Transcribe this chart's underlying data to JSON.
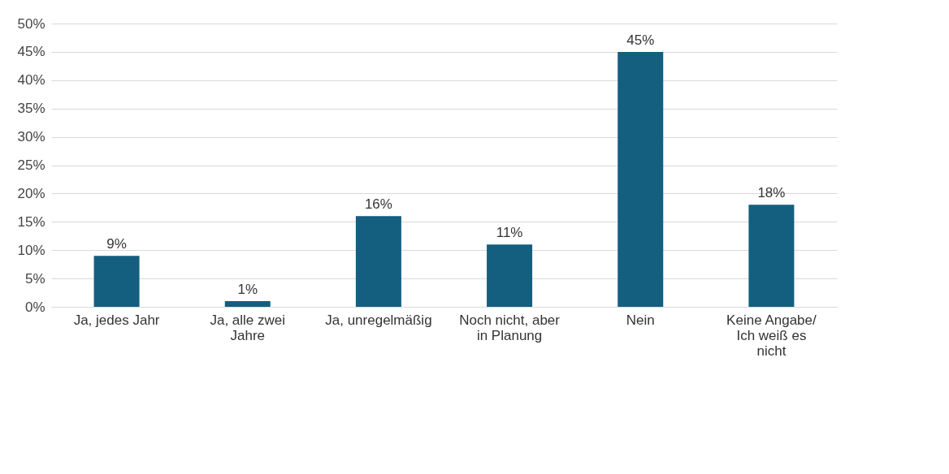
{
  "chart_data": {
    "type": "bar",
    "categories": [
      "Ja, jedes Jahr",
      "Ja, alle zwei Jahre",
      "Ja, unregelmäßig",
      "Noch nicht, aber in Planung",
      "Nein",
      "Keine Angabe/ Ich weiß es nicht"
    ],
    "values": [
      9,
      1,
      16,
      11,
      45,
      18
    ],
    "color": "#145e80",
    "ylim": [
      0,
      50
    ],
    "yticks": [
      {
        "value": 0,
        "label": "0%"
      },
      {
        "value": 5,
        "label": "5%"
      },
      {
        "value": 10,
        "label": "10%"
      },
      {
        "value": 15,
        "label": "15%"
      },
      {
        "value": 20,
        "label": "20%"
      },
      {
        "value": 25,
        "label": "25%"
      },
      {
        "value": 30,
        "label": "30%"
      },
      {
        "value": 35,
        "label": "35%"
      },
      {
        "value": 40,
        "label": "40%"
      },
      {
        "value": 45,
        "label": "45%"
      },
      {
        "value": 50,
        "label": "50%"
      }
    ],
    "value_labels": [
      "9%",
      "1%",
      "16%",
      "11%",
      "45%",
      "18%"
    ],
    "grid": "y"
  }
}
